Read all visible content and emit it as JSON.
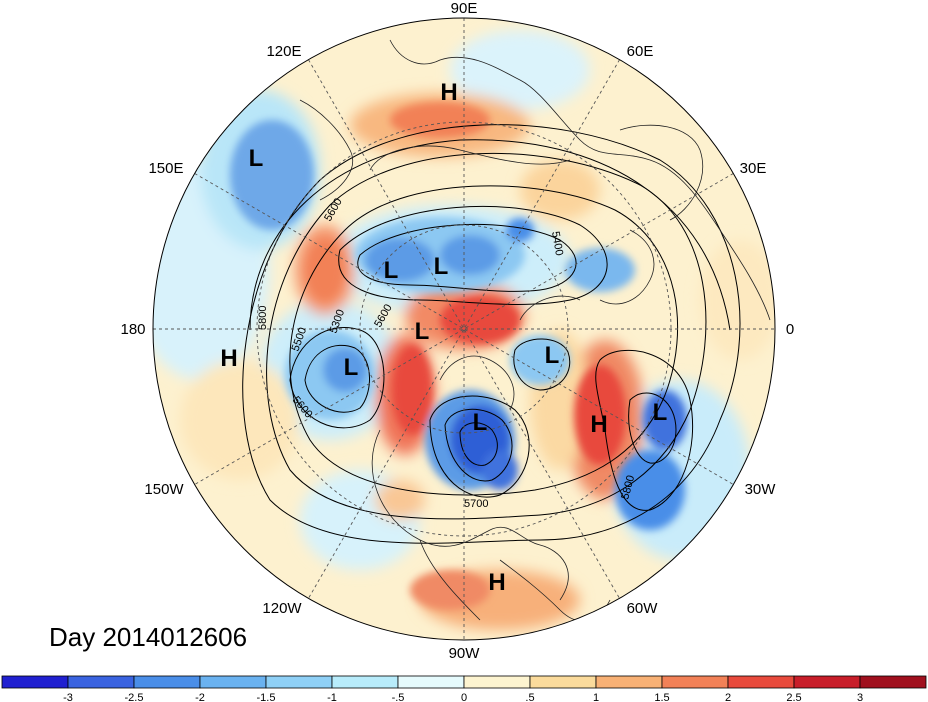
{
  "title": "Day 2014012606",
  "longitude_labels": [
    "90E",
    "60E",
    "30E",
    "0",
    "30W",
    "60W",
    "90W",
    "120W",
    "150W",
    "180",
    "150E",
    "120E"
  ],
  "pressure_centers": [
    {
      "type": "H",
      "region": "siberia"
    },
    {
      "type": "L",
      "region": "west-pacific"
    },
    {
      "type": "H",
      "region": "central-pacific"
    },
    {
      "type": "L",
      "region": "bering"
    },
    {
      "type": "L",
      "region": "east-siberia"
    },
    {
      "type": "L",
      "region": "central-siberia"
    },
    {
      "type": "L",
      "region": "arctic"
    },
    {
      "type": "L",
      "region": "greenland"
    },
    {
      "type": "H",
      "region": "north-atlantic"
    },
    {
      "type": "L",
      "region": "east-atlantic"
    },
    {
      "type": "L",
      "region": "hudson-bay"
    },
    {
      "type": "H",
      "region": "south-america"
    }
  ],
  "contour_labels": [
    "5600",
    "5800",
    "5600",
    "5300",
    "5500",
    "5600",
    "5400",
    "5700",
    "5800"
  ],
  "colorbar": {
    "ticks": [
      "-3",
      "-2.5",
      "-2",
      "-1.5",
      "-1",
      "-.5",
      "0",
      ".5",
      "1",
      "1.5",
      "2",
      "2.5",
      "3"
    ],
    "colors": [
      "#2020d0",
      "#3a63e0",
      "#4a8ee8",
      "#6ab2f0",
      "#8fd0f6",
      "#b8ecfb",
      "#e6fbfd",
      "#fdf4d0",
      "#fbdb9c",
      "#f8b175",
      "#f28157",
      "#e84a3c",
      "#c81e2a",
      "#a0101e"
    ]
  }
}
